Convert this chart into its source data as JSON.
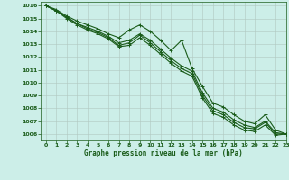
{
  "title": "Graphe pression niveau de la mer (hPa)",
  "background_color": "#cceee8",
  "plot_bg_color": "#cceee8",
  "grid_color": "#b0c8c0",
  "line_color": "#1a5c1a",
  "marker_color": "#1a5c1a",
  "xlim": [
    -0.5,
    23
  ],
  "ylim": [
    1005.5,
    1016.3
  ],
  "xticks": [
    0,
    1,
    2,
    3,
    4,
    5,
    6,
    7,
    8,
    9,
    10,
    11,
    12,
    13,
    14,
    15,
    16,
    17,
    18,
    19,
    20,
    21,
    22,
    23
  ],
  "yticks": [
    1006,
    1007,
    1008,
    1009,
    1010,
    1011,
    1012,
    1013,
    1014,
    1015,
    1016
  ],
  "series": [
    [
      1016.0,
      1015.7,
      1015.2,
      1014.8,
      1014.5,
      1014.2,
      1013.8,
      1013.5,
      1014.1,
      1014.5,
      1014.0,
      1013.3,
      1012.5,
      1013.3,
      1011.1,
      1009.7,
      1008.4,
      1008.1,
      1007.5,
      1007.0,
      1006.8,
      1007.5,
      1006.3,
      1006.0
    ],
    [
      1016.0,
      1015.6,
      1015.1,
      1014.6,
      1014.3,
      1014.0,
      1013.6,
      1013.1,
      1013.3,
      1013.8,
      1013.3,
      1012.6,
      1011.9,
      1011.3,
      1010.9,
      1009.2,
      1008.0,
      1007.7,
      1007.1,
      1006.7,
      1006.5,
      1007.0,
      1006.1,
      1006.0
    ],
    [
      1016.0,
      1015.6,
      1015.1,
      1014.6,
      1014.2,
      1013.9,
      1013.5,
      1012.9,
      1013.1,
      1013.7,
      1013.1,
      1012.4,
      1011.7,
      1011.1,
      1010.7,
      1009.0,
      1007.8,
      1007.5,
      1006.9,
      1006.5,
      1006.4,
      1006.9,
      1006.0,
      1006.0
    ],
    [
      1016.0,
      1015.6,
      1015.0,
      1014.5,
      1014.1,
      1013.8,
      1013.4,
      1012.8,
      1012.9,
      1013.5,
      1012.9,
      1012.2,
      1011.5,
      1010.9,
      1010.5,
      1008.8,
      1007.6,
      1007.3,
      1006.7,
      1006.3,
      1006.2,
      1006.7,
      1005.9,
      1006.0
    ]
  ]
}
